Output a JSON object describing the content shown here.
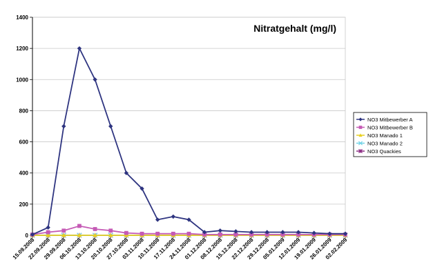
{
  "chart_data": {
    "type": "line",
    "title": "Nitratgehalt (mg/l)",
    "xlabel": "",
    "ylabel": "",
    "ylim": [
      0,
      1400
    ],
    "yticks": [
      0,
      200,
      400,
      600,
      800,
      1000,
      1200,
      1400
    ],
    "grid": "horizontal",
    "legend_position": "right",
    "categories": [
      "15.09.2008",
      "22.09.2008",
      "29.09.2008",
      "06.10.2008",
      "13.10.2008",
      "20.10.2008",
      "27.10.2008",
      "03.11.2008",
      "10.11.2008",
      "17.11.2008",
      "24.11.2008",
      "01.12.2008",
      "08.12.2008",
      "15.12.2008",
      "22.12.2008",
      "29.12.2008",
      "05.01.2009",
      "12.01.2009",
      "19.01.2009",
      "26.01.2009",
      "02.02.2009"
    ],
    "series": [
      {
        "name": "NO3 Mitbewerber A",
        "color": "#2e3480",
        "marker": "diamond",
        "values": [
          5,
          50,
          700,
          1200,
          1000,
          700,
          400,
          300,
          100,
          120,
          100,
          20,
          30,
          25,
          20,
          20,
          20,
          20,
          15,
          10,
          10
        ]
      },
      {
        "name": "NO3 Mitbewerber B",
        "color": "#c55ab5",
        "marker": "square",
        "values": [
          5,
          20,
          30,
          60,
          40,
          30,
          15,
          10,
          10,
          10,
          10,
          5,
          5,
          5,
          5,
          5,
          5,
          5,
          5,
          5,
          5
        ]
      },
      {
        "name": "NO3 Manado 1",
        "color": "#e8d020",
        "marker": "triangle",
        "values": [
          0,
          0,
          0,
          0,
          0,
          0,
          0,
          0,
          0,
          0,
          0,
          0,
          0,
          0,
          0,
          0,
          0,
          0,
          0,
          0,
          0
        ]
      },
      {
        "name": "NO3 Manado 2",
        "color": "#6fd2e6",
        "marker": "x",
        "values": [
          0,
          0,
          0,
          0,
          0,
          0,
          0,
          0,
          0,
          0,
          0,
          0,
          0,
          0,
          0,
          0,
          0,
          0,
          0,
          0,
          0
        ]
      },
      {
        "name": "NO3 Quackies",
        "color": "#8a2a82",
        "marker": "star",
        "values": [
          0,
          0,
          0,
          0,
          0,
          0,
          0,
          0,
          0,
          0,
          0,
          0,
          0,
          0,
          0,
          0,
          0,
          0,
          0,
          0,
          0
        ]
      }
    ]
  }
}
